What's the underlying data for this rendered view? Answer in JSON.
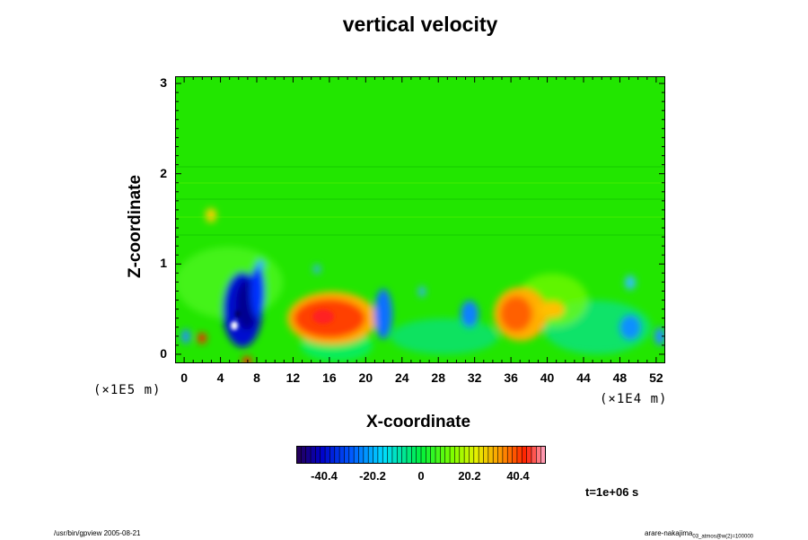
{
  "title": "vertical velocity",
  "chart_data": {
    "type": "heatmap",
    "title": "vertical velocity",
    "xlabel": "X-coordinate",
    "ylabel": "Z-coordinate",
    "x_ticks": [
      "0",
      "4",
      "8",
      "12",
      "16",
      "20",
      "24",
      "28",
      "32",
      "36",
      "40",
      "44",
      "48",
      "52"
    ],
    "y_ticks": [
      "0",
      "1",
      "2",
      "3"
    ],
    "x_scale_label": "(×1E4 m)",
    "y_scale_label": "(×1E5 m)",
    "xlim": [
      -1,
      53
    ],
    "ylim": [
      -0.1,
      3.08
    ],
    "colorbar": {
      "range": [
        -52,
        52
      ],
      "tick_values": [
        -40.4,
        -20.2,
        0,
        20.2,
        40.4
      ],
      "tick_labels": [
        "-40.4",
        "-20.2",
        "0",
        "20.2",
        "40.4"
      ]
    },
    "features": [
      {
        "x": 5.5,
        "z": 0.35,
        "value": -52
      },
      {
        "x": 6.5,
        "z": 0.6,
        "value": -40
      },
      {
        "x": 1.5,
        "z": 0.18,
        "value": 38
      },
      {
        "x": 14,
        "z": 0.4,
        "value": 36
      },
      {
        "x": 22,
        "z": 0.55,
        "value": -28
      },
      {
        "x": 31,
        "z": 0.45,
        "value": -25
      },
      {
        "x": 36,
        "z": 0.45,
        "value": 32
      },
      {
        "x": 48,
        "z": 0.35,
        "value": -22
      },
      {
        "x": 50,
        "z": 0.2,
        "value": -18
      },
      {
        "x": 2.5,
        "z": 1.5,
        "value": 30
      }
    ],
    "time_label": "t=1e+06 s"
  },
  "footer": {
    "left": "/usr/bin/gpview 2005-08-21",
    "right_main": "arare-nakajima",
    "right_sub": "03_atmos@w(2)=100000"
  },
  "colors": {
    "background": "#ffffff",
    "field_base": "#22e600"
  }
}
